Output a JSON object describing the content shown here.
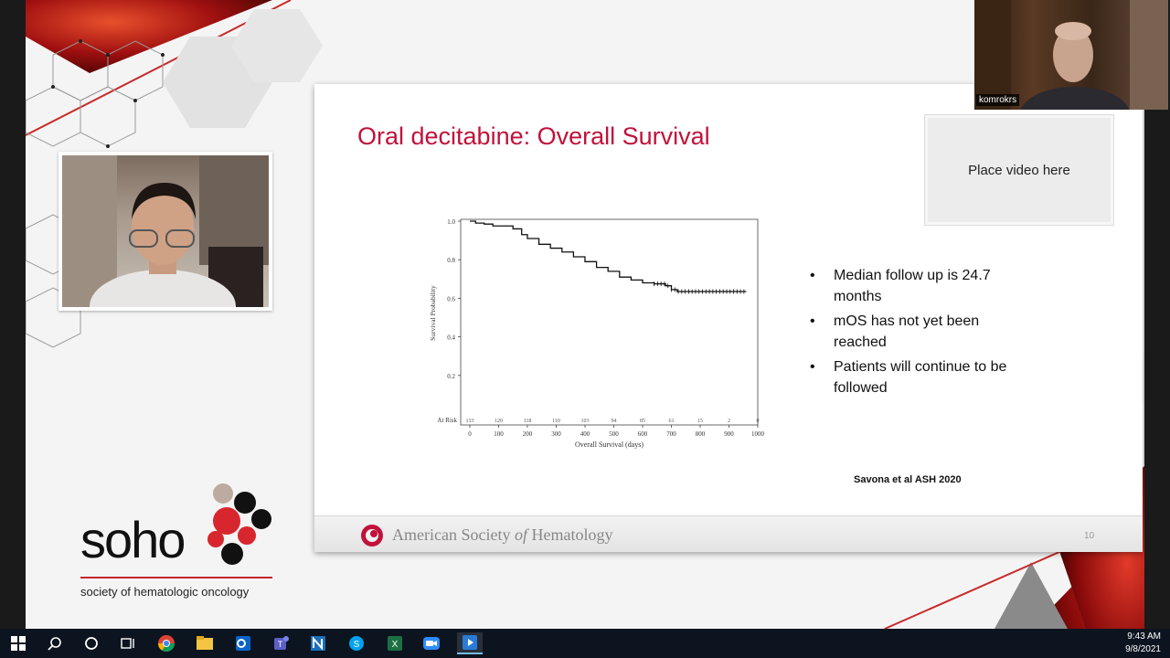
{
  "slide": {
    "title": "Oral decitabine: Overall Survival",
    "video_placeholder": "Place video here",
    "bullets": [
      "Median follow up is 24.7 months",
      "mOS has not yet been reached",
      "Patients will continue to be followed"
    ],
    "citation": "Savona et al ASH 2020",
    "footer_org": "American Society of Hematology",
    "footer_org_pre": "American Society ",
    "footer_org_of": "of",
    "footer_org_post": " Hematology",
    "slide_number": "10"
  },
  "chart_data": {
    "type": "line",
    "ylabel": "Survival Probability",
    "xlabel": "Overall Survival (days)",
    "ylim": [
      0,
      1.0
    ],
    "xlim": [
      0,
      1000
    ],
    "y_ticks": [
      "1.0",
      "0.8",
      "0.6",
      "0.4",
      "0.2"
    ],
    "x_ticks": [
      "0",
      "100",
      "200",
      "300",
      "400",
      "500",
      "600",
      "700",
      "800",
      "900",
      "1000"
    ],
    "at_risk_label": "At Risk",
    "at_risk": [
      "133",
      "120",
      "118",
      "110",
      "103",
      "94",
      "85",
      "61",
      "15",
      "2",
      "0"
    ],
    "series": [
      {
        "x": [
          0,
          20,
          50,
          80,
          110,
          150,
          180,
          200,
          240,
          280,
          320,
          360,
          400,
          440,
          480,
          520,
          560,
          600,
          640,
          680,
          700,
          720,
          760,
          800,
          850,
          900,
          960
        ],
        "y": [
          1.0,
          0.99,
          0.985,
          0.975,
          0.975,
          0.96,
          0.93,
          0.91,
          0.88,
          0.86,
          0.84,
          0.815,
          0.79,
          0.76,
          0.74,
          0.71,
          0.695,
          0.68,
          0.675,
          0.665,
          0.645,
          0.635,
          0.635,
          0.635,
          0.635,
          0.635,
          0.635
        ]
      }
    ]
  },
  "participants": {
    "right_name": "komrokrs"
  },
  "branding": {
    "soho_logo": "soho",
    "soho_subtitle": "society of hematologic oncology"
  },
  "taskbar": {
    "time": "9:43 AM",
    "date": "9/8/2021"
  },
  "colors": {
    "title_red": "#c0123a",
    "soho_red": "#c7242d"
  }
}
